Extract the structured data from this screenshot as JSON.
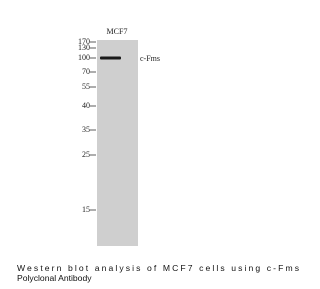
{
  "lane_label": "MCF7",
  "band_label": "c-Fms",
  "markers": [
    "170",
    "130",
    "100",
    "70",
    "55",
    "40",
    "35",
    "25",
    "15"
  ],
  "caption": [
    "Western blot analysis of MCF7 cells using c-Fms",
    "Polyclonal Antibody"
  ]
}
